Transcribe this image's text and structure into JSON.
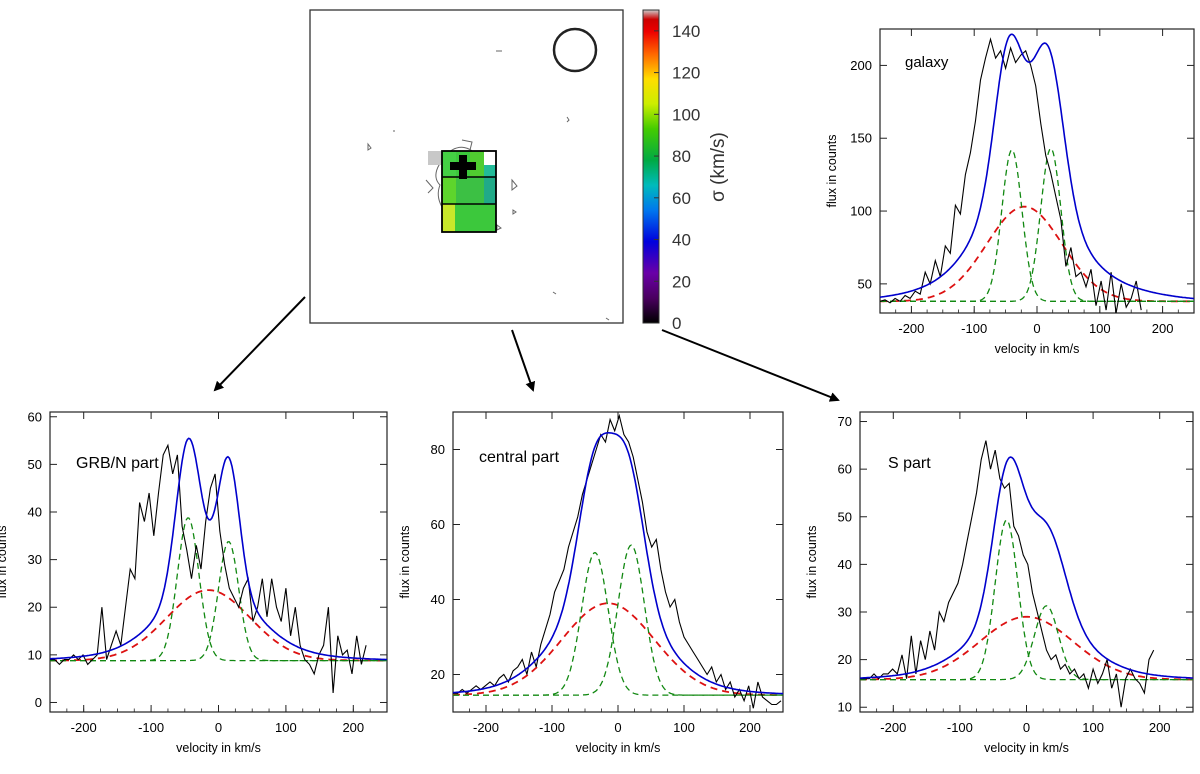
{
  "colors": {
    "data": "#000000",
    "total_fit": "#0000cc",
    "broad": "#dd1111",
    "narrow": "#118811"
  },
  "map": {
    "colorbar_label": "σ (km/s)",
    "colorbar_ticks": [
      "0",
      "20",
      "40",
      "60",
      "80",
      "100",
      "120",
      "140"
    ],
    "colorbar_range": [
      0,
      150
    ]
  },
  "chart_data": [
    {
      "id": "galaxy",
      "type": "line",
      "title": "galaxy",
      "xlabel": "velocity in km/s",
      "ylabel": "flux in counts",
      "xlim": [
        -250,
        250
      ],
      "ylim": [
        30,
        225
      ],
      "xticks": [
        -200,
        -100,
        0,
        100,
        200
      ],
      "yticks": [
        50,
        100,
        150,
        200
      ],
      "baseline": 38,
      "broad": {
        "amp": 65,
        "center": -20,
        "sigma": 60
      },
      "narrow": [
        {
          "amp": 104,
          "center": -40,
          "sigma": 16
        },
        {
          "amp": 105,
          "center": 22,
          "sigma": 16
        }
      ],
      "total": {
        "base": 38,
        "components": [
          {
            "amp": 95,
            "center": -45,
            "sigma": 22
          },
          {
            "amp": 96,
            "center": 18,
            "sigma": 24
          },
          {
            "amp": 65,
            "center": -20,
            "sigma": 60
          },
          {
            "amp": 25,
            "center": -10,
            "sigma": 115
          }
        ]
      },
      "observed": {
        "x0": -250,
        "step": 8,
        "y": [
          38,
          39,
          37,
          40,
          38,
          42,
          40,
          45,
          43,
          58,
          50,
          66,
          55,
          76,
          71,
          104,
          98,
          125,
          140,
          162,
          190,
          205,
          218,
          205,
          210,
          198,
          212,
          202,
          207,
          210,
          200,
          186,
          160,
          138,
          126,
          110,
          94,
          62,
          75,
          55,
          58,
          48,
          60,
          35,
          52,
          32,
          58,
          30,
          50,
          34,
          40,
          52,
          32
        ]
      }
    },
    {
      "id": "grb_n",
      "type": "line",
      "title": "GRB/N part",
      "xlabel": "velocity in km/s",
      "ylabel": "flux in counts",
      "xlim": [
        -250,
        250
      ],
      "ylim": [
        -2,
        61
      ],
      "xticks": [
        -200,
        -100,
        0,
        100,
        200
      ],
      "yticks": [
        0,
        10,
        20,
        30,
        40,
        50,
        60
      ],
      "baseline": 8.8,
      "broad": {
        "amp": 14.8,
        "center": -15,
        "sigma": 62
      },
      "narrow": [
        {
          "amp": 30,
          "center": -45,
          "sigma": 16
        },
        {
          "amp": 25,
          "center": 15,
          "sigma": 15
        }
      ],
      "total": {
        "base": 8.8,
        "components": [
          {
            "amp": 31,
            "center": -45,
            "sigma": 18
          },
          {
            "amp": 27,
            "center": 15,
            "sigma": 16
          },
          {
            "amp": 14.8,
            "center": -15,
            "sigma": 62
          },
          {
            "amp": 2.5,
            "center": -15,
            "sigma": 120
          }
        ]
      },
      "observed": {
        "x0": -250,
        "step": 7,
        "y": [
          9,
          9,
          8,
          9,
          9,
          10,
          9,
          10,
          8,
          9,
          10,
          20,
          9,
          12,
          15,
          12,
          20,
          28,
          26,
          42,
          38,
          44,
          35,
          44,
          52,
          54,
          48,
          52,
          37,
          32,
          26,
          33,
          28,
          38,
          45,
          48,
          36,
          29,
          24,
          22,
          20,
          24,
          26,
          17,
          20,
          26,
          18,
          26,
          20,
          17,
          24,
          14,
          20,
          12,
          9,
          8,
          6,
          10,
          12,
          20,
          2,
          14,
          10,
          11,
          6,
          14,
          8,
          12
        ]
      }
    },
    {
      "id": "central",
      "type": "line",
      "title": "central part",
      "xlabel": "velocity in km/s",
      "ylabel": "flux in counts",
      "xlim": [
        -250,
        250
      ],
      "ylim": [
        10,
        90
      ],
      "xticks": [
        -200,
        -100,
        0,
        100,
        200
      ],
      "yticks": [
        20,
        40,
        60,
        80
      ],
      "baseline": 14.5,
      "broad": {
        "amp": 24.5,
        "center": -15,
        "sigma": 70
      },
      "narrow": [
        {
          "amp": 38,
          "center": -35,
          "sigma": 20
        },
        {
          "amp": 40,
          "center": 20,
          "sigma": 20
        }
      ],
      "total": {
        "base": 14.5,
        "components": [
          {
            "amp": 35,
            "center": -35,
            "sigma": 25
          },
          {
            "amp": 35,
            "center": 15,
            "sigma": 25
          },
          {
            "amp": 24.5,
            "center": -15,
            "sigma": 70
          },
          {
            "amp": 3,
            "center": -15,
            "sigma": 130
          }
        ]
      },
      "observed": {
        "x0": -250,
        "step": 7,
        "y": [
          15,
          15,
          16,
          15,
          16,
          17,
          16,
          17,
          18,
          17,
          19,
          20,
          18,
          21,
          22,
          24,
          20,
          26,
          22,
          28,
          32,
          36,
          42,
          45,
          48,
          54,
          58,
          62,
          68,
          72,
          76,
          80,
          84,
          82,
          88,
          85,
          89,
          84,
          82,
          78,
          72,
          66,
          58,
          54,
          56,
          48,
          42,
          38,
          40,
          34,
          30,
          28,
          26,
          24,
          22,
          20,
          22,
          18,
          20,
          16,
          18,
          14,
          16,
          13,
          17,
          11,
          18,
          14,
          13,
          12,
          12,
          13
        ]
      }
    },
    {
      "id": "s_part",
      "type": "line",
      "title": "S part",
      "xlabel": "velocity in km/s",
      "ylabel": "flux in counts",
      "xlim": [
        -250,
        250
      ],
      "ylim": [
        9,
        72
      ],
      "xticks": [
        -200,
        -100,
        0,
        100,
        200
      ],
      "yticks": [
        10,
        20,
        30,
        40,
        50,
        60,
        70
      ],
      "baseline": 15.8,
      "broad": {
        "amp": 13.2,
        "center": 0,
        "sigma": 70
      },
      "narrow": [
        {
          "amp": 33.5,
          "center": -30,
          "sigma": 17
        },
        {
          "amp": 15.5,
          "center": 30,
          "sigma": 18
        }
      ],
      "total": {
        "base": 15.8,
        "components": [
          {
            "amp": 30,
            "center": -28,
            "sigma": 22
          },
          {
            "amp": 18,
            "center": 30,
            "sigma": 28
          },
          {
            "amp": 13.2,
            "center": 0,
            "sigma": 70
          },
          {
            "amp": 2,
            "center": 0,
            "sigma": 130
          }
        ]
      },
      "observed": {
        "x0": -250,
        "step": 7,
        "y": [
          16,
          16,
          16,
          17,
          16,
          17,
          17,
          18,
          17,
          21,
          16,
          25,
          17,
          24,
          20,
          26,
          22,
          30,
          28,
          32,
          34,
          36,
          40,
          45,
          50,
          55,
          62,
          66,
          60,
          64,
          58,
          56,
          57,
          48,
          46,
          42,
          40,
          34,
          30,
          26,
          22,
          20,
          21,
          18,
          19,
          17,
          18,
          16,
          17,
          14,
          18,
          15,
          17,
          20,
          14,
          17,
          10,
          16,
          18,
          16,
          15,
          13,
          20,
          22
        ]
      }
    }
  ]
}
